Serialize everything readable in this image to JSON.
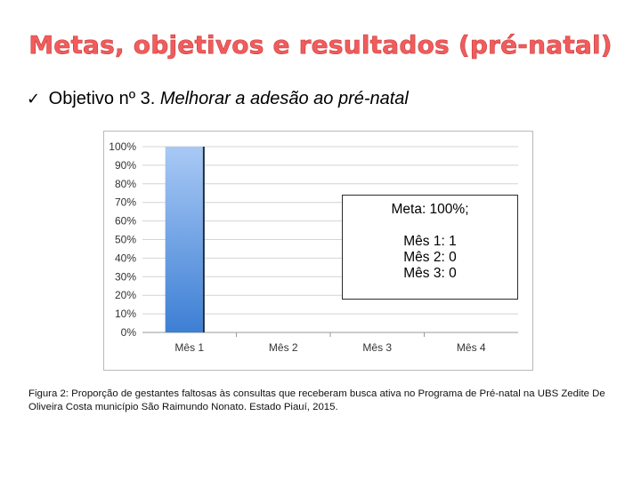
{
  "title": "Metas, objetivos e resultados (pré-natal)",
  "objective": {
    "prefix": "Objetivo nº 3.",
    "text": "Melhorar a adesão ao pré-natal"
  },
  "meta_box": {
    "goal": "Meta: 100%;",
    "lines": [
      "Mês 1: 1",
      "Mês 2: 0",
      "Mês 3: 0"
    ]
  },
  "caption": "Figura 2: Proporção de gestantes faltosas às consultas que receberam busca ativa no Programa de Pré-natal na UBS Zedite De Oliveira Costa município São Raimundo Nonato. Estado Piauí, 2015.",
  "colors": {
    "title": "#f25c5c",
    "bar_top": "#a9c9f5",
    "bar_bottom": "#3d7fd4"
  },
  "chart_data": {
    "type": "bar",
    "categories": [
      "Mês 1",
      "Mês 2",
      "Mês 3",
      "Mês 4"
    ],
    "values": [
      100,
      0,
      0,
      0
    ],
    "yticks": [
      "0%",
      "10%",
      "20%",
      "30%",
      "40%",
      "50%",
      "60%",
      "70%",
      "80%",
      "90%",
      "100%"
    ],
    "ylim": [
      0,
      100
    ],
    "grid": true
  }
}
